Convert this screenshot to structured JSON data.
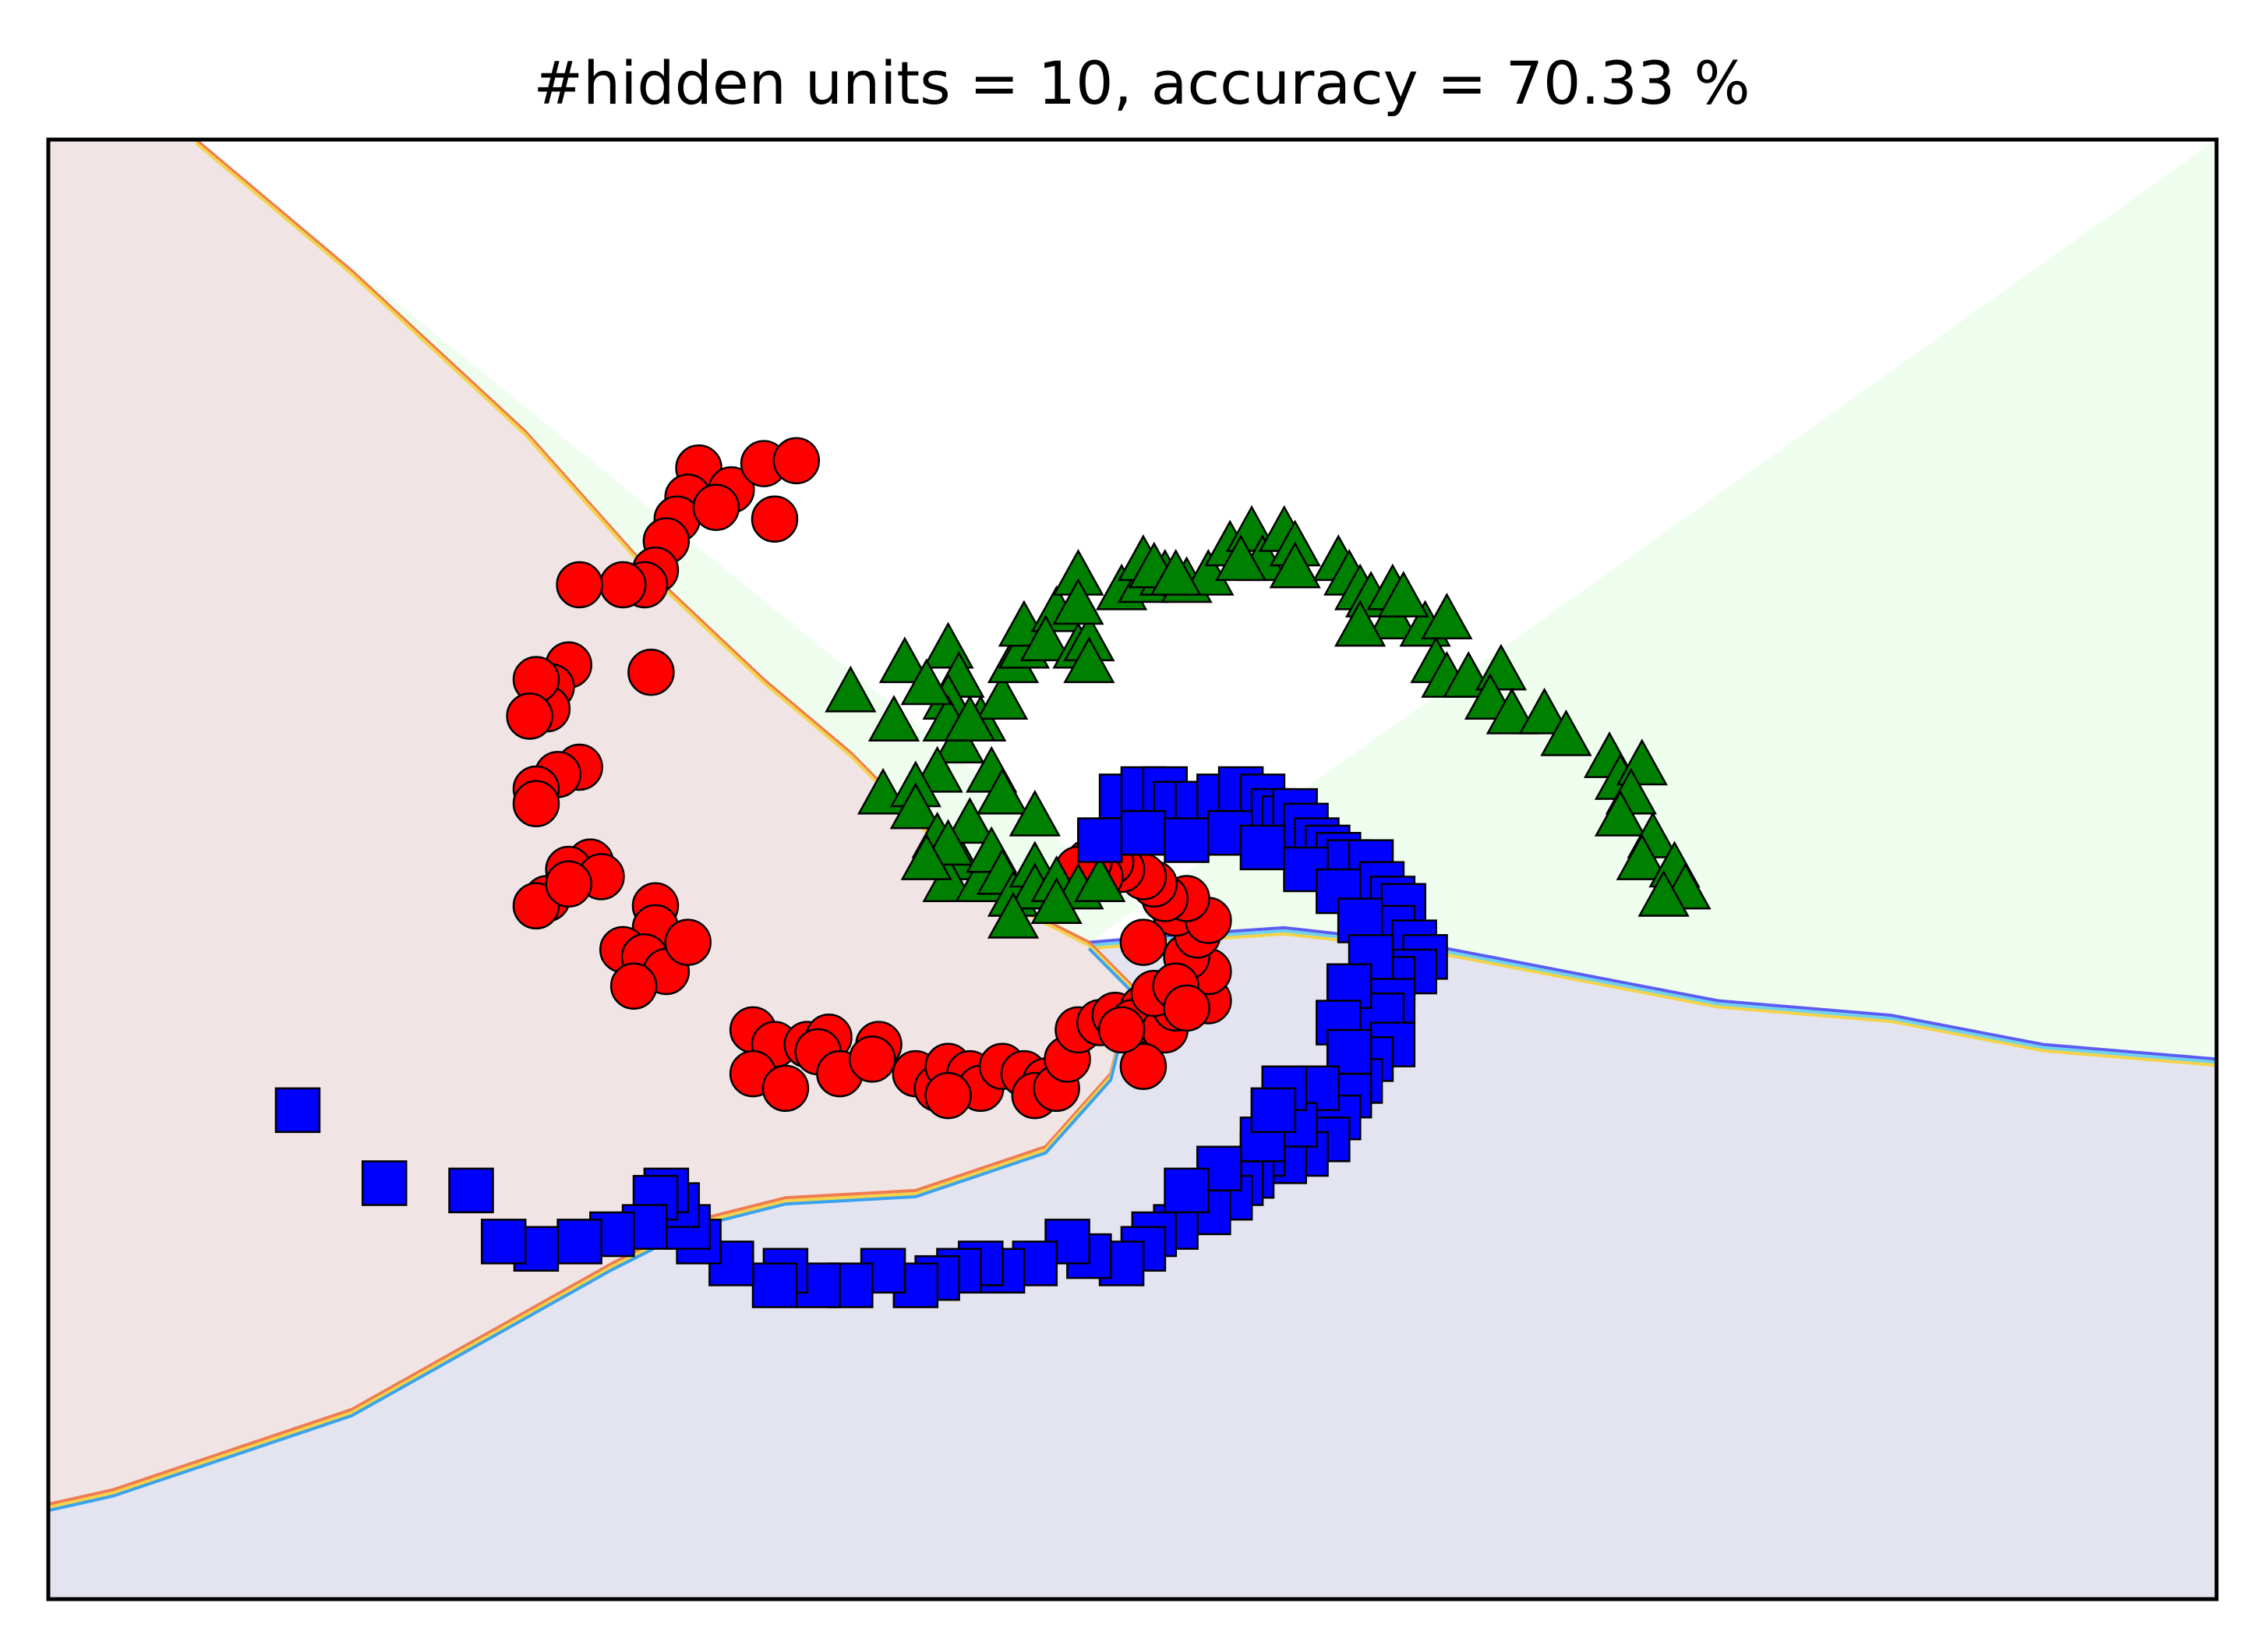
{
  "chart_data": {
    "type": "scatter",
    "title": "#hidden units = 10, accuracy = 70.33 %",
    "xlabel": "",
    "ylabel": "",
    "xlim": [
      0,
      100
    ],
    "ylim": [
      0,
      100
    ],
    "ticks_shown": false,
    "grid": false,
    "legend": "none",
    "decision_regions": [
      {
        "label": "class 0",
        "color": "#f1e4e4",
        "boundary_color": "#f07b4f"
      },
      {
        "label": "class 1",
        "color": "#effdef",
        "boundary_color": "#f4d34a"
      },
      {
        "label": "class 2",
        "color": "#e4e4f1",
        "boundary_color": "#5a5cf2"
      }
    ],
    "boundaries": {
      "red_green": [
        [
          6.8,
          100
        ],
        [
          14,
          91
        ],
        [
          22,
          80
        ],
        [
          28,
          70
        ],
        [
          33,
          63
        ],
        [
          37,
          58
        ],
        [
          41,
          52
        ],
        [
          44,
          48
        ],
        [
          48,
          45
        ]
      ],
      "green_blue": [
        [
          48,
          45
        ],
        [
          52,
          45.5
        ],
        [
          57,
          46
        ],
        [
          60,
          45.5
        ],
        [
          63,
          45
        ],
        [
          70,
          43
        ],
        [
          77,
          41
        ],
        [
          85,
          40
        ],
        [
          92,
          38
        ],
        [
          96,
          37.5
        ],
        [
          100,
          37
        ]
      ],
      "red_blue": [
        [
          48,
          45
        ],
        [
          50,
          42
        ],
        [
          49,
          36
        ],
        [
          46,
          31
        ],
        [
          40,
          28
        ],
        [
          34,
          27.5
        ],
        [
          30,
          26
        ],
        [
          26,
          23
        ],
        [
          20,
          18
        ],
        [
          14,
          13
        ],
        [
          8,
          10
        ],
        [
          3,
          7.5
        ],
        [
          0,
          6.5
        ]
      ]
    },
    "series": [
      {
        "marker": "circle",
        "color": "#ff0000",
        "edge_color": "#000000",
        "points": [
          [
            30,
            77.5
          ],
          [
            29.5,
            75.5
          ],
          [
            29,
            74
          ],
          [
            28.5,
            72.5
          ],
          [
            28,
            70.5
          ],
          [
            27.5,
            69.5
          ],
          [
            31.5,
            76
          ],
          [
            30.8,
            74.8
          ],
          [
            33,
            77.8
          ],
          [
            34.5,
            78
          ],
          [
            33.5,
            74
          ],
          [
            26.5,
            69.5
          ],
          [
            24.5,
            69.5
          ],
          [
            27.8,
            63.5
          ],
          [
            24,
            64
          ],
          [
            23.2,
            62.5
          ],
          [
            23,
            61
          ],
          [
            22.5,
            63
          ],
          [
            22.2,
            60.5
          ],
          [
            24.5,
            57
          ],
          [
            23.5,
            56.5
          ],
          [
            22.5,
            55.5
          ],
          [
            22.5,
            54.5
          ],
          [
            25,
            50.5
          ],
          [
            24,
            50
          ],
          [
            25.5,
            49.5
          ],
          [
            23,
            48
          ],
          [
            22.5,
            47.5
          ],
          [
            24,
            49
          ],
          [
            28,
            47.5
          ],
          [
            28,
            46
          ],
          [
            26.5,
            44.5
          ],
          [
            27.5,
            44
          ],
          [
            28.5,
            43
          ],
          [
            27,
            42
          ],
          [
            29.5,
            45
          ],
          [
            32.5,
            39
          ],
          [
            33.5,
            38
          ],
          [
            32.5,
            36
          ],
          [
            35,
            38
          ],
          [
            36,
            38.5
          ],
          [
            35.5,
            37.5
          ],
          [
            36.5,
            36
          ],
          [
            34,
            35
          ],
          [
            38.3,
            38
          ],
          [
            40,
            36
          ],
          [
            41,
            35
          ],
          [
            41.5,
            36.5
          ],
          [
            42.5,
            36
          ],
          [
            43,
            35
          ],
          [
            41.5,
            34.5
          ],
          [
            44,
            36.5
          ],
          [
            45,
            36
          ],
          [
            46,
            35.5
          ],
          [
            45.5,
            34.5
          ],
          [
            46.5,
            35
          ],
          [
            47,
            37
          ],
          [
            47.5,
            39
          ],
          [
            48.5,
            39.5
          ],
          [
            49.2,
            40
          ],
          [
            50.5,
            40.5
          ],
          [
            50,
            39.5
          ],
          [
            51.5,
            39
          ],
          [
            52,
            40.5
          ],
          [
            51,
            41.5
          ],
          [
            52.5,
            42
          ],
          [
            53.5,
            41
          ],
          [
            53.5,
            43
          ],
          [
            52.5,
            44
          ],
          [
            53,
            45.5
          ],
          [
            52,
            47
          ],
          [
            53.5,
            46.5
          ],
          [
            52.5,
            48
          ],
          [
            51.5,
            48
          ],
          [
            51,
            49
          ],
          [
            50.5,
            49.5
          ],
          [
            49.5,
            50
          ],
          [
            49,
            50.5
          ],
          [
            48.5,
            49.5
          ],
          [
            48,
            50.5
          ],
          [
            47.5,
            50
          ],
          [
            52,
            42
          ],
          [
            50.5,
            45
          ],
          [
            50.5,
            36.5
          ],
          [
            49.5,
            39
          ],
          [
            52.5,
            40.5
          ],
          [
            38,
            37
          ]
        ]
      },
      {
        "marker": "triangle",
        "color": "#008000",
        "edge_color": "#000000",
        "points": [
          [
            37,
            62
          ],
          [
            39,
            60
          ],
          [
            38.5,
            55
          ],
          [
            41.5,
            65
          ],
          [
            42,
            63
          ],
          [
            41.5,
            61.5
          ],
          [
            41.5,
            60
          ],
          [
            42,
            58.5
          ],
          [
            41,
            56.5
          ],
          [
            40,
            55.5
          ],
          [
            40,
            54
          ],
          [
            41,
            52
          ],
          [
            42,
            50.5
          ],
          [
            41.5,
            49
          ],
          [
            43,
            49
          ],
          [
            42.5,
            53
          ],
          [
            41.5,
            51.5
          ],
          [
            40.5,
            50.5
          ],
          [
            43.5,
            51
          ],
          [
            44,
            49.5
          ],
          [
            44.5,
            48
          ],
          [
            45.5,
            50
          ],
          [
            45.5,
            48.5
          ],
          [
            46.5,
            49
          ],
          [
            47.5,
            48.5
          ],
          [
            48.5,
            49
          ],
          [
            46.5,
            47.5
          ],
          [
            44.5,
            46.5
          ],
          [
            43,
            60
          ],
          [
            44,
            61.5
          ],
          [
            44.5,
            64
          ],
          [
            45,
            65
          ],
          [
            45,
            66.5
          ],
          [
            46.5,
            67.5
          ],
          [
            46,
            65.5
          ],
          [
            47.5,
            65
          ],
          [
            48,
            65.5
          ],
          [
            47.5,
            70
          ],
          [
            47.5,
            68
          ],
          [
            48,
            64
          ],
          [
            49.5,
            69
          ],
          [
            50.5,
            69.5
          ],
          [
            51.5,
            70
          ],
          [
            50.5,
            71
          ],
          [
            51,
            70.5
          ],
          [
            52.5,
            69.5
          ],
          [
            53.5,
            70
          ],
          [
            54.5,
            72
          ],
          [
            55.5,
            73
          ],
          [
            56,
            71
          ],
          [
            57,
            73
          ],
          [
            57.5,
            72
          ],
          [
            57.5,
            70.5
          ],
          [
            59.5,
            71
          ],
          [
            60,
            70
          ],
          [
            60.5,
            69
          ],
          [
            61,
            68.5
          ],
          [
            62,
            69
          ],
          [
            62,
            67
          ],
          [
            63.5,
            66.5
          ],
          [
            64.5,
            67
          ],
          [
            64,
            64
          ],
          [
            64.5,
            63
          ],
          [
            65.5,
            63
          ],
          [
            67,
            63.5
          ],
          [
            66.5,
            61.5
          ],
          [
            67.5,
            60.5
          ],
          [
            69,
            60.5
          ],
          [
            70,
            59
          ],
          [
            72,
            57.5
          ],
          [
            72.5,
            56
          ],
          [
            73.5,
            57
          ],
          [
            73,
            55
          ],
          [
            72.5,
            53.5
          ],
          [
            74,
            52
          ],
          [
            73.5,
            50.5
          ],
          [
            75,
            50
          ],
          [
            75.5,
            48.5
          ],
          [
            74.5,
            48
          ],
          [
            39.5,
            64
          ],
          [
            40.5,
            62.5
          ],
          [
            42.5,
            60
          ],
          [
            43.5,
            56.5
          ],
          [
            44,
            55
          ],
          [
            45.5,
            53.5
          ],
          [
            52,
            70
          ],
          [
            55,
            71
          ],
          [
            60.5,
            66.5
          ],
          [
            62.5,
            68.5
          ]
        ]
      },
      {
        "marker": "square",
        "color": "#0000ff",
        "edge_color": "#000000",
        "points": [
          [
            49.5,
            55
          ],
          [
            50.5,
            55.5
          ],
          [
            51.5,
            55.5
          ],
          [
            52,
            54.5
          ],
          [
            53,
            54.5
          ],
          [
            54,
            55
          ],
          [
            55,
            55.5
          ],
          [
            56,
            55
          ],
          [
            56.5,
            54
          ],
          [
            57,
            53.5
          ],
          [
            57.5,
            54
          ],
          [
            58,
            53
          ],
          [
            58.5,
            52
          ],
          [
            59,
            51.5
          ],
          [
            59.5,
            51
          ],
          [
            60,
            50.5
          ],
          [
            61,
            50.5
          ],
          [
            61.5,
            49
          ],
          [
            62,
            48
          ],
          [
            62.5,
            47.5
          ],
          [
            62,
            46
          ],
          [
            63,
            45
          ],
          [
            63.5,
            44
          ],
          [
            63,
            43
          ],
          [
            62,
            42.5
          ],
          [
            62,
            41
          ],
          [
            61.5,
            40
          ],
          [
            62,
            38
          ],
          [
            61,
            37
          ],
          [
            60.5,
            35.5
          ],
          [
            60,
            34.5
          ],
          [
            59.5,
            33
          ],
          [
            59,
            31.5
          ],
          [
            58,
            30.5
          ],
          [
            57,
            30
          ],
          [
            56,
            30.5
          ],
          [
            55.5,
            29
          ],
          [
            55,
            28.5
          ],
          [
            54.5,
            27.5
          ],
          [
            53.5,
            26.5
          ],
          [
            52,
            25.5
          ],
          [
            51,
            25
          ],
          [
            50.5,
            24
          ],
          [
            49.5,
            23
          ],
          [
            48,
            23.5
          ],
          [
            47,
            24.5
          ],
          [
            45.5,
            23
          ],
          [
            44,
            22.5
          ],
          [
            43,
            23
          ],
          [
            42,
            22.5
          ],
          [
            41,
            22
          ],
          [
            40,
            21.5
          ],
          [
            38.5,
            22.5
          ],
          [
            37,
            21.5
          ],
          [
            35.5,
            21.5
          ],
          [
            34,
            22.5
          ],
          [
            33.5,
            21.5
          ],
          [
            31.5,
            23
          ],
          [
            30,
            24.5
          ],
          [
            29.5,
            25.5
          ],
          [
            29,
            27
          ],
          [
            28.5,
            28
          ],
          [
            28,
            27.5
          ],
          [
            27.5,
            25.5
          ],
          [
            26,
            25
          ],
          [
            24.5,
            24.5
          ],
          [
            22.5,
            24
          ],
          [
            21,
            24.5
          ],
          [
            19.5,
            28
          ],
          [
            15.5,
            28.5
          ],
          [
            11.5,
            33.5
          ],
          [
            48.5,
            52
          ],
          [
            50.5,
            52.5
          ],
          [
            52.5,
            52
          ],
          [
            54.5,
            52.5
          ],
          [
            56,
            51.5
          ],
          [
            58,
            50
          ],
          [
            59.5,
            48.5
          ],
          [
            60.5,
            46.5
          ],
          [
            61,
            44
          ],
          [
            60,
            42
          ],
          [
            59.5,
            39.5
          ],
          [
            60,
            37.5
          ],
          [
            58.5,
            35
          ],
          [
            57.5,
            32.5
          ],
          [
            56,
            31.5
          ],
          [
            54,
            29.5
          ],
          [
            52.5,
            28
          ],
          [
            57,
            35
          ],
          [
            56.5,
            33.5
          ]
        ]
      }
    ]
  }
}
